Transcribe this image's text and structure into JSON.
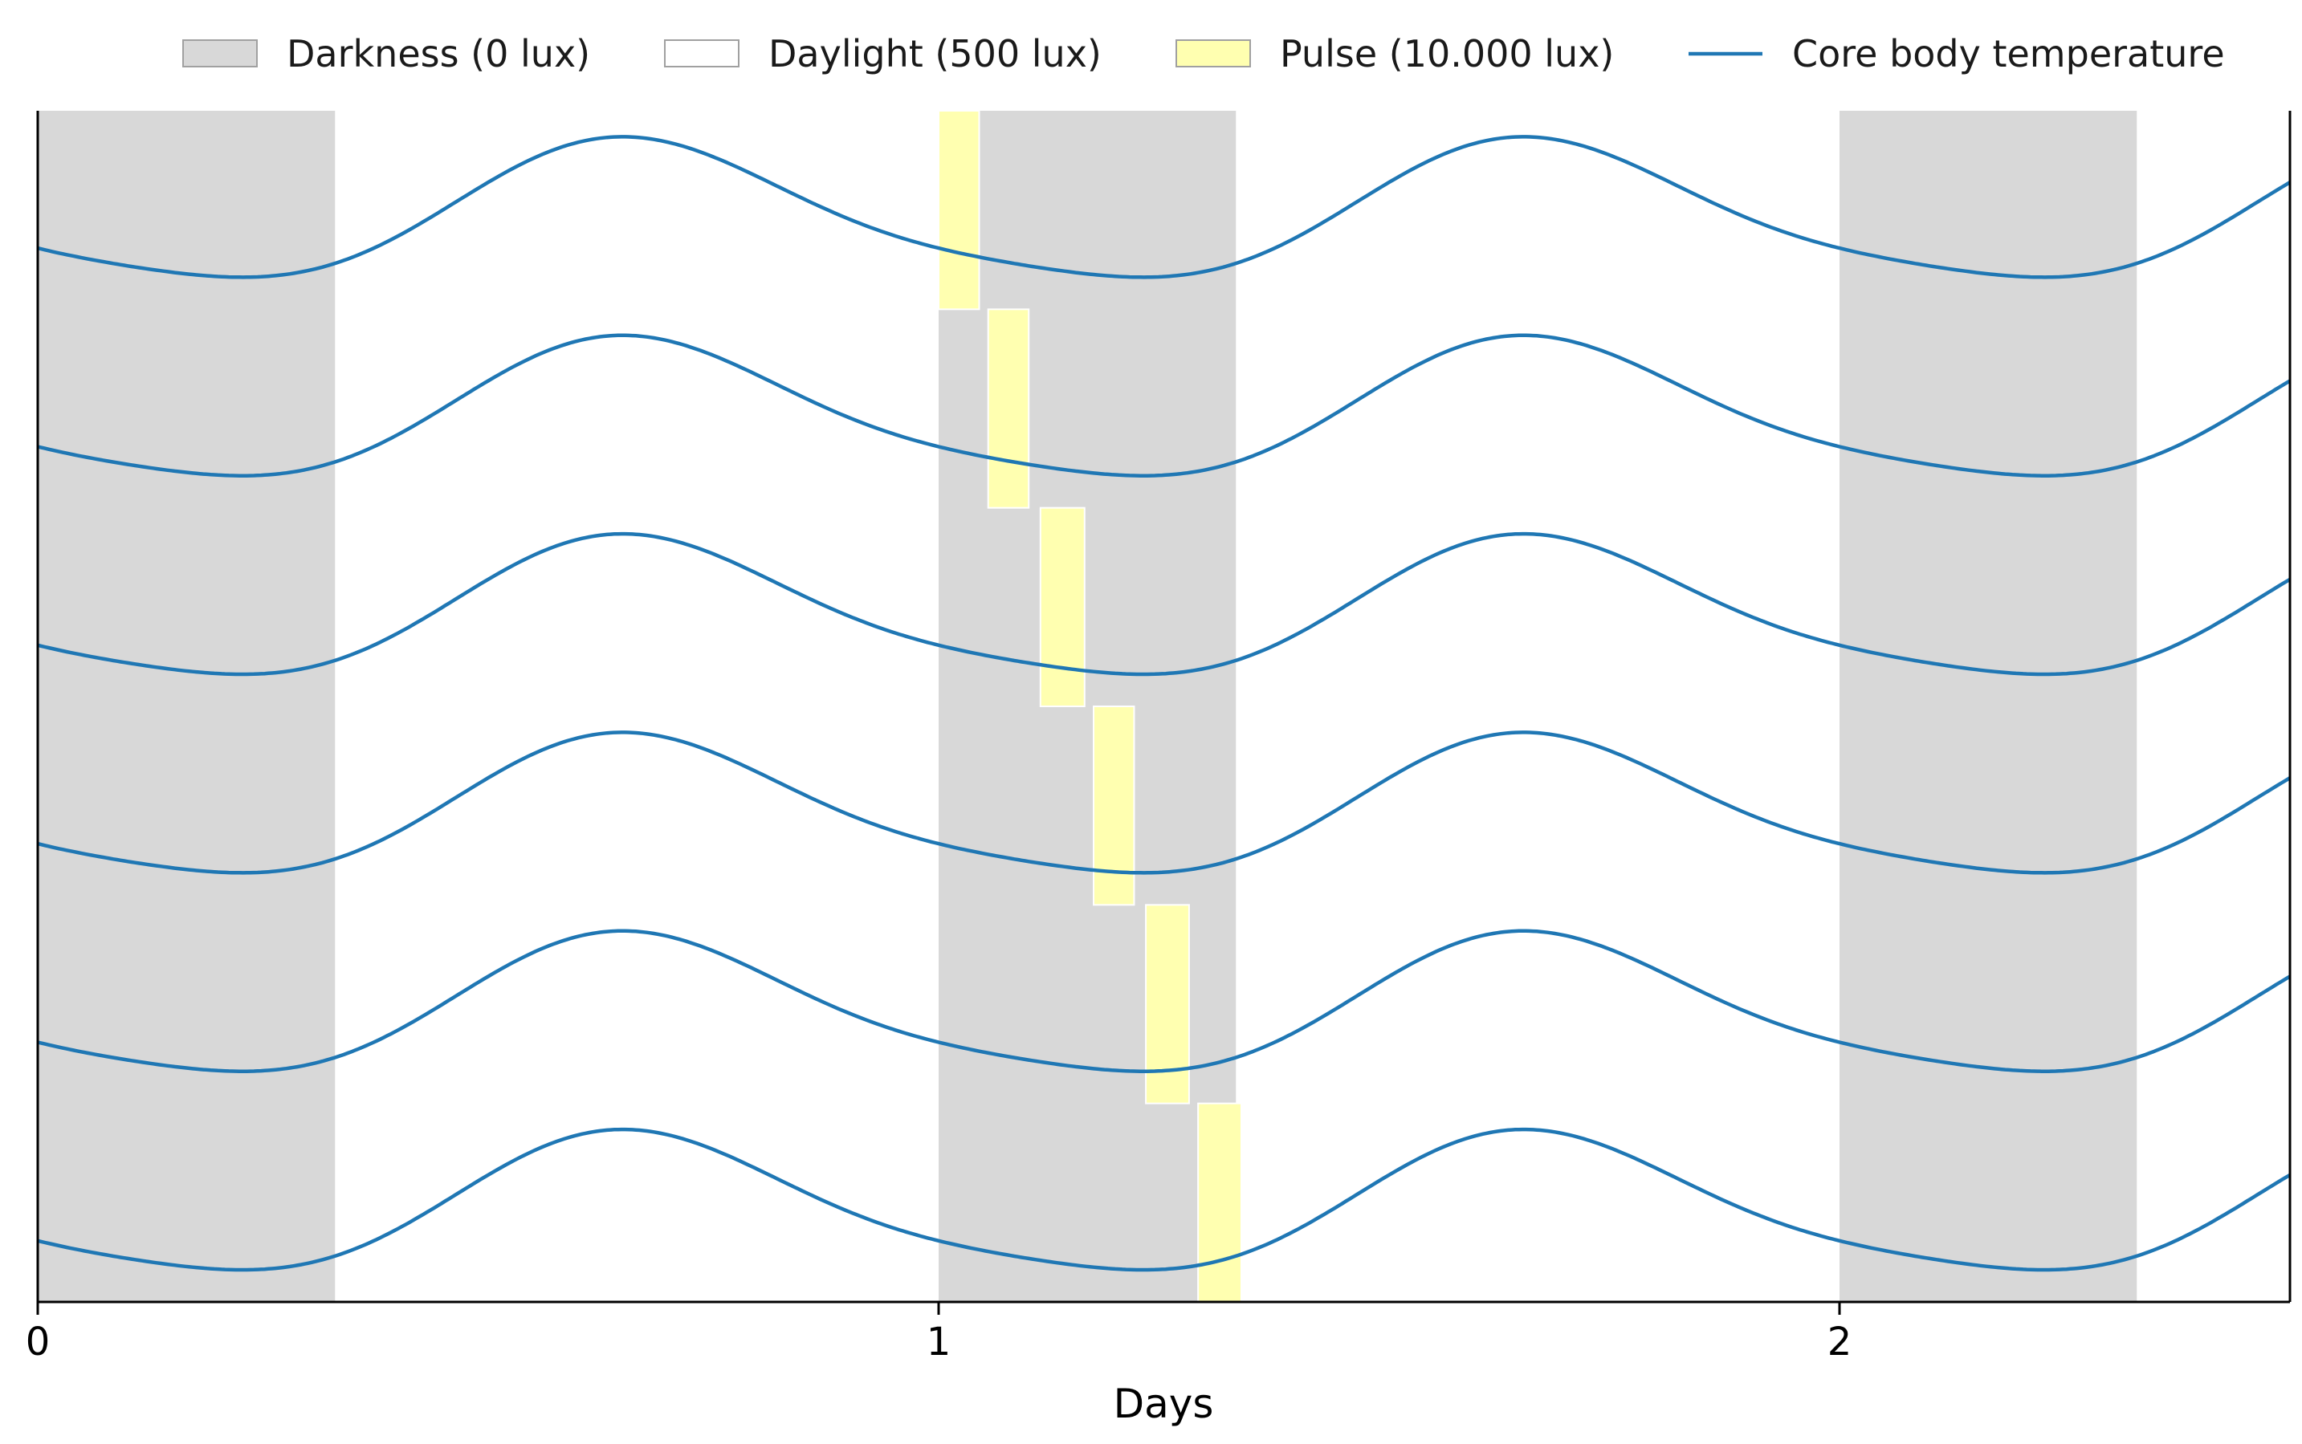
{
  "chart_data": {
    "type": "line",
    "xlabel": "Days",
    "ylabel": "",
    "xlim": [
      0,
      2.5
    ],
    "xticks": [
      0,
      1,
      2
    ],
    "grid": false,
    "legend_position": "top",
    "legend": [
      {
        "label": "Darkness (0 lux)",
        "kind": "patch",
        "color": "#d8d8d8"
      },
      {
        "label": "Daylight (500 lux)",
        "kind": "patch",
        "color": "#ffffff"
      },
      {
        "label": "Pulse (10.000 lux)",
        "kind": "patch",
        "color": "#ffffb0"
      },
      {
        "label": "Core body temperature",
        "kind": "line",
        "color": "#1f77b4"
      }
    ],
    "darkness_intervals": [
      [
        0,
        0.33
      ],
      [
        1.0,
        1.33
      ],
      [
        2.0,
        2.33
      ]
    ],
    "pulses": [
      {
        "row": 1,
        "start": 1.0,
        "end": 1.045
      },
      {
        "row": 2,
        "start": 1.055,
        "end": 1.1
      },
      {
        "row": 3,
        "start": 1.113,
        "end": 1.162
      },
      {
        "row": 4,
        "start": 1.172,
        "end": 1.217
      },
      {
        "row": 5,
        "start": 1.23,
        "end": 1.278
      },
      {
        "row": 6,
        "start": 1.288,
        "end": 1.336
      }
    ],
    "series_rows": 6,
    "line_color": "#1f77b4"
  }
}
